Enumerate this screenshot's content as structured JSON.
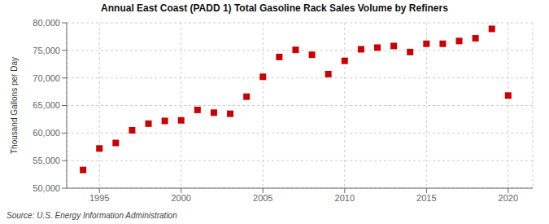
{
  "chart_data": {
    "type": "scatter",
    "title": "Annual East Coast (PADD 1) Total Gasoline Rack Sales Volume by Refiners",
    "ylabel": "Thousand Gallons per Day",
    "source": "Source: U.S. Energy Information Administration",
    "x": [
      1994,
      1995,
      1996,
      1997,
      1998,
      1999,
      2000,
      2001,
      2002,
      2003,
      2004,
      2005,
      2006,
      2007,
      2008,
      2009,
      2010,
      2011,
      2012,
      2013,
      2014,
      2015,
      2016,
      2017,
      2018,
      2019,
      2020
    ],
    "values": [
      53300,
      57200,
      58200,
      60500,
      61700,
      62200,
      62300,
      64200,
      63700,
      63500,
      66600,
      70200,
      73800,
      75100,
      74200,
      70700,
      73100,
      75200,
      75500,
      75800,
      74700,
      76200,
      76200,
      76700,
      77200,
      78900,
      66800
    ],
    "color": "#cc0000",
    "marker": "square",
    "grid": true,
    "xlim": [
      1993.0,
      2021.5
    ],
    "xticks": [
      1995,
      2000,
      2005,
      2010,
      2015,
      2020
    ],
    "ylim": [
      50000,
      80000
    ],
    "yticks": [
      {
        "value": 50000,
        "label": "50,000"
      },
      {
        "value": 55000,
        "label": "55,000"
      },
      {
        "value": 60000,
        "label": "60,000"
      },
      {
        "value": 65000,
        "label": "65,000"
      },
      {
        "value": 70000,
        "label": "70,000"
      },
      {
        "value": 75000,
        "label": "75,000"
      },
      {
        "value": 80000,
        "label": "80,000"
      }
    ]
  }
}
